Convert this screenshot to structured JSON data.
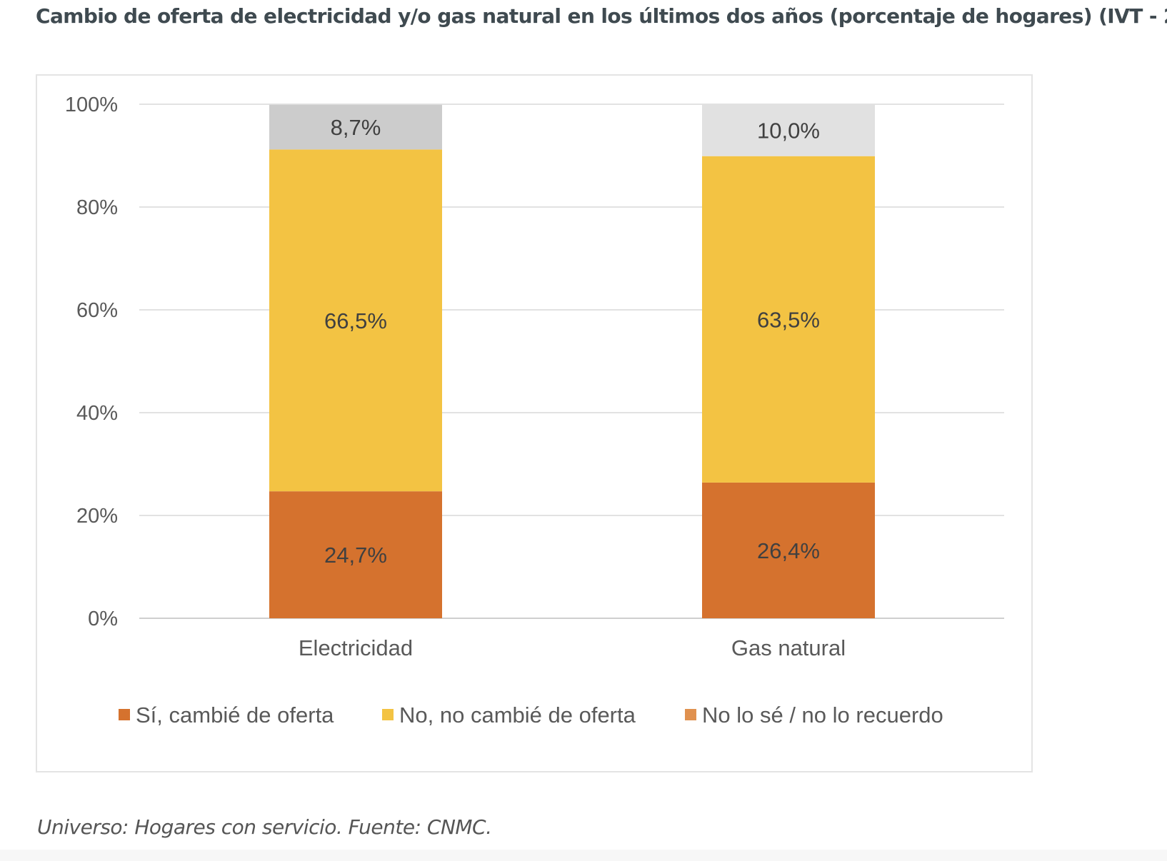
{
  "title": "Cambio de oferta de electricidad y/o gas natural en los últimos dos años (porcentaje de hogares) (IVT - 2",
  "footer": "Universo: Hogares con servicio. Fuente: CNMC.",
  "chart_data": {
    "type": "bar",
    "stacked": true,
    "categories": [
      "Electricidad",
      "Gas natural"
    ],
    "series": [
      {
        "name": "Sí, cambié de oferta",
        "values": [
          24.7,
          26.4
        ],
        "labels": [
          "24,7%",
          "26,4%"
        ],
        "color": "#d5722e",
        "legend_color": "#d5722e"
      },
      {
        "name": "No, no cambié de oferta",
        "values": [
          66.5,
          63.5
        ],
        "labels": [
          "66,5%",
          "63,5%"
        ],
        "color": "#f3c343",
        "legend_color": "#f3c343"
      },
      {
        "name": "No lo sé / no lo recuerdo",
        "values": [
          8.7,
          10.0
        ],
        "labels": [
          "8,7%",
          "10,0%"
        ],
        "colors": [
          "#cccccc",
          "#e1e1e1"
        ],
        "legend_color": "#e0914f"
      }
    ],
    "ylim": [
      0,
      100
    ],
    "yticks": [
      "0%",
      "20%",
      "40%",
      "60%",
      "80%",
      "100%"
    ],
    "grid": true,
    "legend_position": "bottom"
  }
}
